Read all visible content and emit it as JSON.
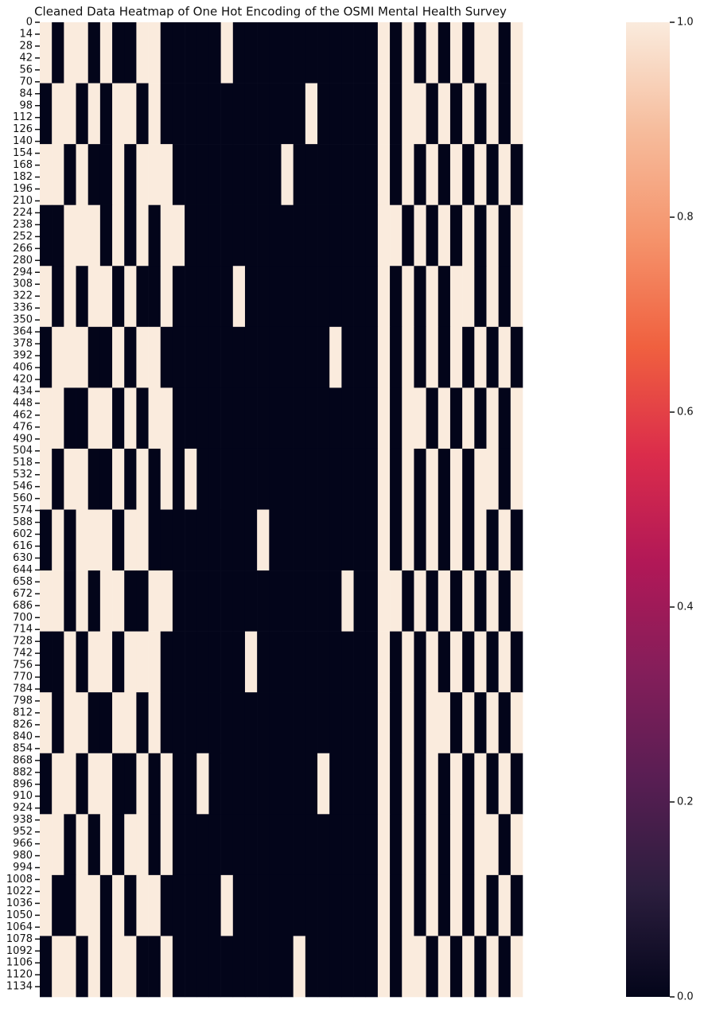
{
  "chart_data": {
    "type": "heatmap",
    "title": "Cleaned Data Heatmap of One Hot Encoding of the OSMI Mental Health Survey",
    "values": [
      [
        1,
        0,
        1,
        1,
        0,
        1,
        0,
        0,
        1,
        1,
        0,
        0,
        0,
        0,
        0,
        1,
        0,
        0,
        0,
        0,
        0,
        0,
        0,
        0,
        0,
        0,
        0,
        0,
        1,
        0,
        1,
        0,
        1,
        0,
        1,
        0,
        1,
        1,
        0,
        1
      ],
      [
        0,
        1,
        1,
        0,
        1,
        0,
        1,
        1,
        0,
        1,
        0,
        0,
        0,
        0,
        0,
        0,
        0,
        0,
        0,
        0,
        0,
        0,
        1,
        0,
        0,
        0,
        0,
        0,
        1,
        0,
        1,
        1,
        0,
        1,
        0,
        1,
        0,
        1,
        0,
        1
      ],
      [
        1,
        1,
        0,
        1,
        0,
        0,
        1,
        0,
        1,
        1,
        1,
        0,
        0,
        0,
        0,
        0,
        0,
        0,
        0,
        0,
        1,
        0,
        0,
        0,
        0,
        0,
        0,
        0,
        1,
        0,
        1,
        0,
        1,
        0,
        1,
        0,
        1,
        0,
        1,
        0
      ],
      [
        0,
        0,
        1,
        1,
        1,
        0,
        1,
        0,
        1,
        0,
        1,
        1,
        0,
        0,
        0,
        0,
        0,
        0,
        0,
        0,
        0,
        0,
        0,
        0,
        0,
        0,
        0,
        0,
        1,
        1,
        0,
        1,
        0,
        1,
        0,
        1,
        0,
        1,
        0,
        1
      ],
      [
        1,
        0,
        1,
        0,
        1,
        1,
        0,
        1,
        0,
        0,
        1,
        0,
        0,
        0,
        0,
        0,
        1,
        0,
        0,
        0,
        0,
        0,
        0,
        0,
        0,
        0,
        0,
        0,
        1,
        0,
        1,
        0,
        1,
        0,
        1,
        1,
        0,
        1,
        0,
        1
      ],
      [
        0,
        1,
        1,
        1,
        0,
        0,
        1,
        0,
        1,
        1,
        0,
        0,
        0,
        0,
        0,
        0,
        0,
        0,
        0,
        0,
        0,
        0,
        0,
        0,
        1,
        0,
        0,
        0,
        1,
        0,
        1,
        0,
        1,
        0,
        1,
        0,
        1,
        0,
        1,
        0
      ],
      [
        1,
        1,
        0,
        0,
        1,
        1,
        0,
        1,
        0,
        1,
        1,
        0,
        0,
        0,
        0,
        0,
        0,
        0,
        0,
        0,
        0,
        0,
        0,
        0,
        0,
        0,
        0,
        0,
        1,
        0,
        1,
        1,
        0,
        1,
        0,
        1,
        0,
        1,
        0,
        1
      ],
      [
        1,
        0,
        1,
        1,
        0,
        0,
        1,
        0,
        1,
        0,
        1,
        0,
        1,
        0,
        0,
        0,
        0,
        0,
        0,
        0,
        0,
        0,
        0,
        0,
        0,
        0,
        0,
        0,
        1,
        0,
        1,
        0,
        1,
        0,
        1,
        0,
        1,
        1,
        0,
        1
      ],
      [
        0,
        1,
        0,
        1,
        1,
        1,
        0,
        1,
        1,
        0,
        0,
        0,
        0,
        0,
        0,
        0,
        0,
        0,
        1,
        0,
        0,
        0,
        0,
        0,
        0,
        0,
        0,
        0,
        1,
        0,
        1,
        0,
        1,
        0,
        1,
        0,
        1,
        0,
        1,
        0
      ],
      [
        1,
        1,
        0,
        1,
        0,
        1,
        1,
        0,
        0,
        1,
        1,
        0,
        0,
        0,
        0,
        0,
        0,
        0,
        0,
        0,
        0,
        0,
        0,
        0,
        0,
        1,
        0,
        0,
        1,
        1,
        0,
        1,
        0,
        1,
        0,
        1,
        0,
        1,
        0,
        1
      ],
      [
        0,
        0,
        1,
        0,
        1,
        1,
        0,
        1,
        1,
        1,
        0,
        0,
        0,
        0,
        0,
        0,
        0,
        1,
        0,
        0,
        0,
        0,
        0,
        0,
        0,
        0,
        0,
        0,
        1,
        0,
        1,
        0,
        1,
        0,
        1,
        0,
        1,
        0,
        1,
        0
      ],
      [
        1,
        0,
        1,
        1,
        0,
        0,
        1,
        1,
        0,
        1,
        0,
        0,
        0,
        0,
        0,
        0,
        0,
        0,
        0,
        0,
        0,
        0,
        0,
        0,
        0,
        0,
        0,
        0,
        1,
        0,
        1,
        0,
        1,
        1,
        0,
        1,
        0,
        1,
        0,
        1
      ],
      [
        0,
        1,
        1,
        0,
        1,
        1,
        0,
        0,
        1,
        0,
        1,
        0,
        0,
        1,
        0,
        0,
        0,
        0,
        0,
        0,
        0,
        0,
        0,
        1,
        0,
        0,
        0,
        0,
        1,
        0,
        1,
        0,
        1,
        0,
        1,
        0,
        1,
        0,
        1,
        0
      ],
      [
        1,
        1,
        0,
        1,
        0,
        1,
        0,
        1,
        1,
        0,
        1,
        0,
        0,
        0,
        0,
        0,
        0,
        0,
        0,
        0,
        0,
        0,
        0,
        0,
        0,
        0,
        0,
        0,
        1,
        0,
        1,
        0,
        1,
        0,
        1,
        0,
        1,
        1,
        0,
        1
      ],
      [
        1,
        0,
        0,
        1,
        1,
        0,
        1,
        0,
        1,
        1,
        0,
        0,
        0,
        0,
        0,
        1,
        0,
        0,
        0,
        0,
        0,
        0,
        0,
        0,
        0,
        0,
        0,
        0,
        1,
        0,
        1,
        0,
        1,
        0,
        1,
        0,
        1,
        0,
        1,
        0
      ],
      [
        0,
        1,
        1,
        0,
        1,
        0,
        1,
        1,
        0,
        0,
        1,
        0,
        0,
        0,
        0,
        0,
        0,
        0,
        0,
        0,
        0,
        1,
        0,
        0,
        0,
        0,
        0,
        0,
        1,
        0,
        1,
        1,
        0,
        1,
        0,
        1,
        0,
        1,
        0,
        1
      ]
    ],
    "ylim": [
      0,
      1146
    ],
    "yticks": [
      0,
      14,
      28,
      42,
      56,
      70,
      84,
      98,
      112,
      126,
      140,
      154,
      168,
      182,
      196,
      210,
      224,
      238,
      252,
      266,
      280,
      294,
      308,
      322,
      336,
      350,
      364,
      378,
      392,
      406,
      420,
      434,
      448,
      462,
      476,
      490,
      504,
      518,
      532,
      546,
      560,
      574,
      588,
      602,
      616,
      630,
      644,
      658,
      672,
      686,
      700,
      714,
      728,
      742,
      756,
      770,
      784,
      798,
      812,
      826,
      840,
      854,
      868,
      882,
      896,
      910,
      924,
      938,
      952,
      966,
      980,
      994,
      1008,
      1022,
      1036,
      1050,
      1064,
      1078,
      1092,
      1106,
      1120,
      1134
    ],
    "colorbar": {
      "lim": [
        0,
        1
      ],
      "ticks": [
        {
          "value": 0,
          "label": "0.0"
        },
        {
          "value": 0.2,
          "label": "0.2"
        },
        {
          "value": 0.4,
          "label": "0.4"
        },
        {
          "value": 0.6,
          "label": "0.6"
        },
        {
          "value": 0.8,
          "label": "0.8"
        },
        {
          "value": 1,
          "label": "1.0"
        }
      ],
      "colors": [
        "#03051a",
        "#2c1e3e",
        "#581e53",
        "#841e5a",
        "#b11857",
        "#db2c4b",
        "#f0603f",
        "#f5936b",
        "#f6bc9c",
        "#faebdd"
      ]
    }
  }
}
